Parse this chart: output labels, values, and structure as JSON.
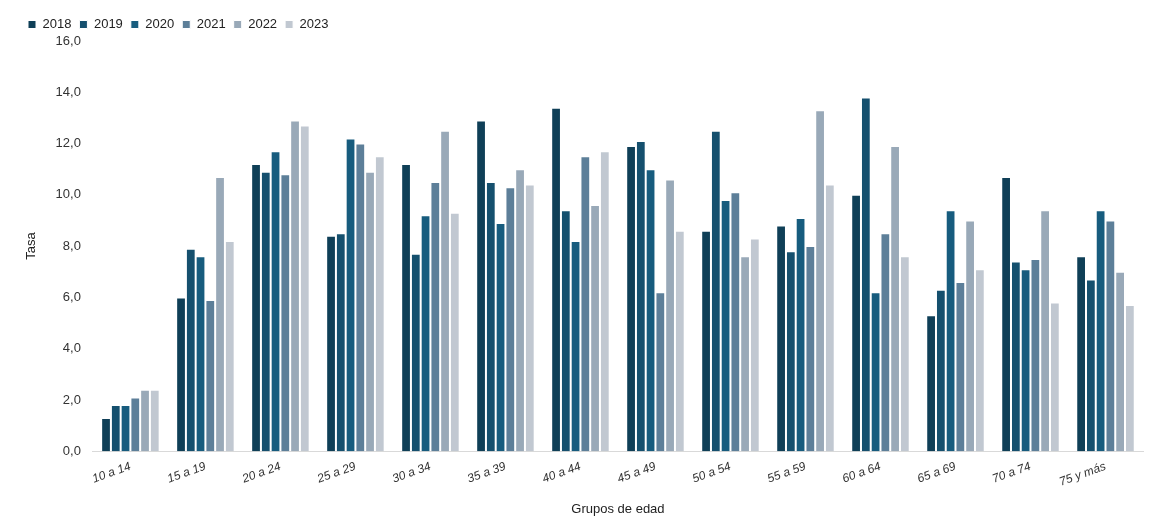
{
  "chart_data": {
    "type": "bar",
    "xlabel": "Grupos de edad",
    "ylabel": "Tasa",
    "categories": [
      "10 a 14",
      "15 a 19",
      "20 a 24",
      "25 a 29",
      "30 a 34",
      "35 a 39",
      "40 a 44",
      "45 a 49",
      "50 a 54",
      "55 a 59",
      "60 a 64",
      "65 a 69",
      "70 a 74",
      "75 y más"
    ],
    "series": [
      {
        "name": "2018",
        "color": "#0f3f57",
        "values": [
          1.3,
          6.0,
          11.2,
          8.4,
          11.2,
          12.9,
          13.4,
          11.9,
          8.6,
          8.8,
          10.0,
          5.3,
          10.7,
          7.6
        ]
      },
      {
        "name": "2019",
        "color": "#15506e",
        "values": [
          1.8,
          7.9,
          10.9,
          8.5,
          7.7,
          10.5,
          9.4,
          12.1,
          12.5,
          7.8,
          13.8,
          6.3,
          7.4,
          6.7
        ]
      },
      {
        "name": "2020",
        "color": "#175c7e",
        "values": [
          1.8,
          7.6,
          11.7,
          12.2,
          9.2,
          8.9,
          8.2,
          11.0,
          9.8,
          9.1,
          6.2,
          9.4,
          7.1,
          9.4
        ]
      },
      {
        "name": "2021",
        "color": "#5d7f99",
        "values": [
          2.1,
          5.9,
          10.8,
          12.0,
          10.5,
          10.3,
          11.5,
          6.2,
          10.1,
          8.0,
          8.5,
          6.6,
          7.5,
          9.0
        ]
      },
      {
        "name": "2022",
        "color": "#99a9b8",
        "values": [
          2.4,
          10.7,
          12.9,
          10.9,
          12.5,
          11.0,
          9.6,
          10.6,
          7.6,
          13.3,
          11.9,
          9.0,
          9.4,
          7.0
        ]
      },
      {
        "name": "2023",
        "color": "#c1c8d1",
        "values": [
          2.4,
          8.2,
          12.7,
          11.5,
          9.3,
          10.4,
          11.7,
          8.6,
          8.3,
          10.4,
          7.6,
          7.1,
          5.8,
          5.7
        ]
      }
    ],
    "ylim": [
      0,
      16
    ],
    "yticks": [
      {
        "value": 0,
        "label": "0,0"
      },
      {
        "value": 2,
        "label": "2,0"
      },
      {
        "value": 4,
        "label": "4,0"
      },
      {
        "value": 6,
        "label": "6,0"
      },
      {
        "value": 8,
        "label": "8,0"
      },
      {
        "value": 10,
        "label": "10,0"
      },
      {
        "value": 12,
        "label": "12,0"
      },
      {
        "value": 14,
        "label": "14,0"
      },
      {
        "value": 16,
        "label": "16,0"
      }
    ],
    "grid": false,
    "legend": "top left"
  }
}
